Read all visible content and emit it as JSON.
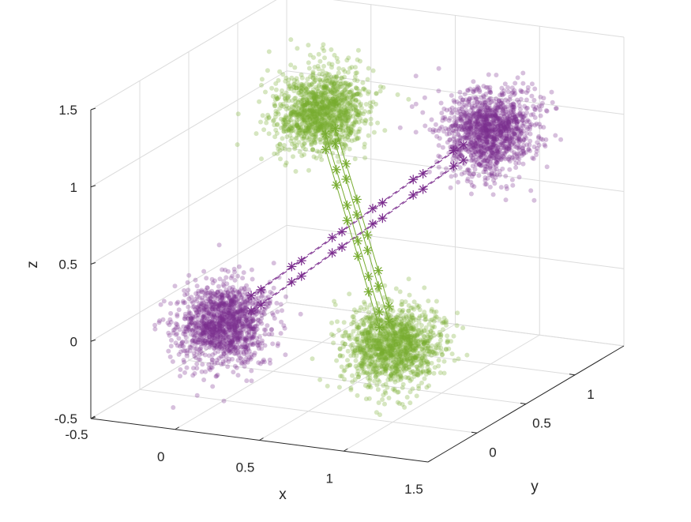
{
  "chart_data": {
    "type": "scatter3d",
    "xlabel": "x",
    "ylabel": "y",
    "zlabel": "z",
    "xlim": [
      -0.5,
      1.5
    ],
    "ylim": [
      -0.5,
      1.5
    ],
    "zlim": [
      -0.5,
      1.5
    ],
    "x_ticks": [
      {
        "v": -0.5,
        "label": "-0.5"
      },
      {
        "v": 0,
        "label": "0"
      },
      {
        "v": 0.5,
        "label": "0.5"
      },
      {
        "v": 1,
        "label": "1"
      },
      {
        "v": 1.5,
        "label": "1.5"
      }
    ],
    "y_ticks": [
      {
        "v": 0,
        "label": "0"
      },
      {
        "v": 0.5,
        "label": "0.5"
      },
      {
        "v": 1,
        "label": "1"
      }
    ],
    "z_ticks": [
      {
        "v": -0.5,
        "label": "-0.5"
      },
      {
        "v": 0,
        "label": "0"
      },
      {
        "v": 0.5,
        "label": "0.5"
      },
      {
        "v": 1,
        "label": "1"
      },
      {
        "v": 1.5,
        "label": "1.5"
      }
    ],
    "grid": true,
    "series": [
      {
        "color": "#7b2d8e",
        "clusters": [
          {
            "center": [
              0,
              0,
              0
            ],
            "spread": 0.12
          },
          {
            "center": [
              1,
              1,
              1
            ],
            "spread": 0.12
          }
        ],
        "connector_style": "dashed-asterisk"
      },
      {
        "color": "#77ac30",
        "clusters": [
          {
            "center": [
              1,
              0,
              0
            ],
            "spread": 0.12
          },
          {
            "center": [
              0,
              1,
              1
            ],
            "spread": 0.12
          }
        ],
        "connector_style": "solid-asterisk"
      }
    ]
  }
}
